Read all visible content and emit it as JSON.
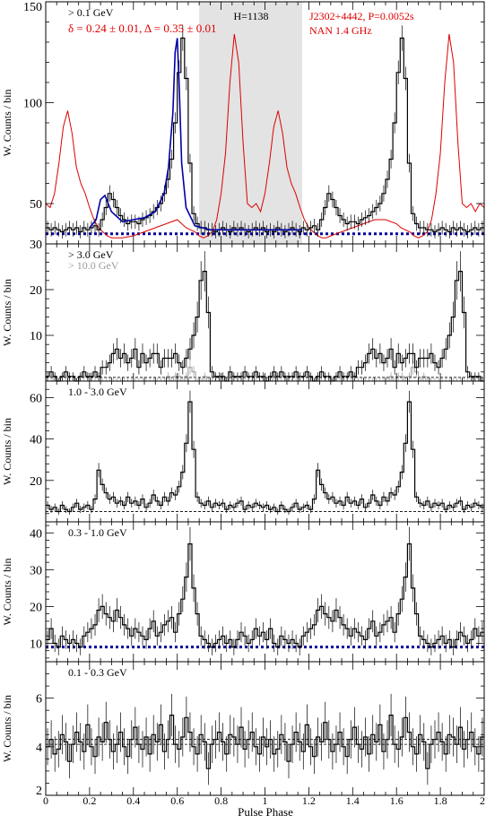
{
  "figure": {
    "x_axis_label": "Pulse Phase",
    "x_ticks": [
      "0",
      "0.2",
      "0.4",
      "0.6",
      "0.8",
      "1",
      "1.2",
      "1.4",
      "1.6",
      "1.8",
      "2"
    ],
    "colors": {
      "counts": "#000000",
      "radio": "#dd0000",
      "fit": "#0000aa",
      "background": "#000099",
      "offpulse": "#e3e3e3",
      "highE": "#9a9a9a"
    }
  },
  "chart_data": [
    {
      "type": "line",
      "panel": "p1",
      "ylabel": "W. Counts / bin",
      "ylim": [
        30,
        150
      ],
      "yticks": [
        50,
        100,
        150
      ],
      "bottom_tick_label": "30",
      "energy_label": "> 0.1 GeV",
      "fit_label": "δ = 0.24 ± 0.01, Δ = 0.35 ± 0.01",
      "h_label": "H=1138",
      "source_label": "J2302+4442, P=0.0052s",
      "radio_label": "NAN 1.4 GHz",
      "offpulse_phase": [
        0.7,
        1.17
      ],
      "background_level": 35,
      "series": [
        {
          "name": "> 0.1 GeV",
          "values": [
            38,
            37,
            38,
            37,
            36,
            37,
            38,
            37,
            38,
            36,
            38,
            37,
            38,
            39,
            37,
            42,
            48,
            55,
            52,
            48,
            44,
            42,
            40,
            41,
            41,
            40,
            42,
            43,
            44,
            46,
            48,
            50,
            55,
            62,
            72,
            90,
            115,
            132,
            112,
            70,
            45,
            40,
            38,
            38,
            37,
            37,
            36,
            37,
            38,
            37,
            36,
            38,
            37,
            38,
            37,
            36,
            37,
            38,
            37,
            38,
            36,
            37,
            36,
            38,
            37,
            36,
            37,
            38,
            37,
            36,
            38,
            37,
            38,
            39,
            37,
            42,
            48,
            55,
            52,
            48,
            44,
            42,
            40,
            41,
            41,
            40,
            42,
            43,
            44,
            46,
            48,
            50,
            55,
            62,
            72,
            90,
            115,
            132,
            112,
            70,
            45,
            40,
            38,
            38,
            37,
            37,
            36,
            37,
            38,
            37,
            36,
            38,
            37,
            38,
            37,
            36,
            37,
            38,
            37,
            38
          ]
        }
      ],
      "radio_profile": {
        "name": "NAN 1.4 GHz",
        "x": [
          0,
          0.02,
          0.04,
          0.06,
          0.08,
          0.1,
          0.12,
          0.14,
          0.16,
          0.18,
          0.2,
          0.22,
          0.24,
          0.26,
          0.28,
          0.3,
          0.35,
          0.4,
          0.45,
          0.5,
          0.55,
          0.6,
          0.62,
          0.64,
          0.66,
          0.68,
          0.7,
          0.72,
          0.74,
          0.76,
          0.78,
          0.8,
          0.82,
          0.84,
          0.86,
          0.88,
          0.9,
          0.92,
          0.94,
          0.96,
          0.98,
          1,
          1.02,
          1.04,
          1.06,
          1.08,
          1.1,
          1.12,
          1.14,
          1.16,
          1.18,
          1.2,
          1.22,
          1.24,
          1.26,
          1.28,
          1.3,
          1.35,
          1.4,
          1.45,
          1.5,
          1.55,
          1.6,
          1.62,
          1.64,
          1.66,
          1.68,
          1.7,
          1.72,
          1.74,
          1.76,
          1.78,
          1.8,
          1.82,
          1.84,
          1.86,
          1.88,
          1.9,
          1.92,
          1.94,
          1.96,
          1.98,
          2
        ],
        "y": [
          50,
          48,
          55,
          70,
          88,
          96,
          85,
          68,
          60,
          55,
          48,
          42,
          38,
          36,
          34,
          33,
          33,
          34,
          36,
          38,
          40,
          42,
          40,
          38,
          37,
          36,
          34,
          33,
          34,
          36,
          42,
          55,
          75,
          110,
          134,
          120,
          80,
          50,
          48,
          50,
          46,
          55,
          70,
          88,
          96,
          85,
          68,
          60,
          55,
          48,
          42,
          38,
          36,
          34,
          33,
          33,
          34,
          36,
          38,
          40,
          42,
          42,
          40,
          38,
          37,
          36,
          34,
          33,
          34,
          36,
          42,
          55,
          75,
          110,
          134,
          120,
          80,
          50,
          48,
          50,
          46,
          50,
          48
        ]
      },
      "fit_curve": {
        "name": "fit",
        "x": [
          0.2,
          0.23,
          0.25,
          0.27,
          0.3,
          0.35,
          0.4,
          0.45,
          0.5,
          0.54,
          0.56,
          0.58,
          0.59,
          0.6,
          0.61,
          0.62,
          0.64,
          0.68,
          0.75,
          0.85,
          1.0,
          1.1,
          1.17
        ],
        "y": [
          38,
          42,
          52,
          54,
          46,
          41,
          42,
          43,
          46,
          55,
          68,
          95,
          125,
          132,
          105,
          70,
          48,
          39,
          37,
          37,
          37,
          37,
          37
        ]
      }
    },
    {
      "type": "line",
      "panel": "p2",
      "ylabel": "W. Counts / bin",
      "ylim": [
        0,
        30
      ],
      "yticks": [
        10,
        20
      ],
      "energy_label": "> 3.0 GeV",
      "energy_label_2": "> 10.0 GeV",
      "background_level": 0.8,
      "series": [
        {
          "name": "> 3.0 GeV",
          "values": [
            1,
            2,
            1,
            0,
            1,
            2,
            1,
            1,
            0,
            1,
            2,
            1,
            1,
            2,
            1,
            3,
            3,
            4,
            6,
            7,
            5,
            6,
            4,
            5,
            7,
            3,
            6,
            4,
            5,
            6,
            6,
            3,
            5,
            5,
            5,
            6,
            4,
            3,
            5,
            7,
            10,
            14,
            22,
            24,
            15,
            2,
            1,
            1,
            1,
            0,
            2,
            1,
            1,
            1,
            2,
            1,
            1,
            2,
            1,
            1,
            0,
            1,
            2,
            1,
            2,
            1,
            1,
            1,
            2,
            1,
            1,
            2,
            1,
            0,
            1,
            2,
            1,
            1,
            0,
            1,
            2,
            1,
            1,
            2,
            1,
            3,
            3,
            4,
            6,
            7,
            5,
            6,
            4,
            5,
            7,
            3,
            6,
            4,
            5,
            6,
            6,
            3,
            5,
            5,
            5,
            6,
            4,
            3,
            5,
            7,
            10,
            14,
            22,
            24,
            15,
            2,
            1,
            1,
            1,
            0
          ]
        },
        {
          "name": "> 10.0 GeV",
          "values": [
            0,
            0,
            1,
            0,
            0,
            0,
            0,
            0,
            0,
            0,
            0,
            0,
            0,
            0,
            0,
            0,
            0,
            0,
            0,
            0,
            0,
            0,
            0,
            0,
            0,
            0,
            0,
            0,
            0,
            0,
            0,
            0,
            0,
            1,
            0,
            1,
            1,
            0,
            1,
            3,
            2,
            0,
            0,
            1,
            0,
            0,
            0,
            0,
            0,
            0,
            0,
            0,
            0,
            0,
            0,
            0,
            0,
            0,
            0,
            0,
            0,
            0,
            1,
            0,
            0,
            0,
            0,
            0,
            0,
            0,
            0,
            0,
            0,
            0,
            0,
            0,
            0,
            0,
            0,
            0,
            0,
            0,
            0,
            0,
            0,
            0,
            0,
            0,
            0,
            0,
            0,
            0,
            0,
            0,
            1,
            0,
            1,
            1,
            0,
            1,
            3,
            2,
            0,
            1,
            0,
            0,
            0,
            0,
            0,
            0,
            0,
            0,
            0,
            0,
            0,
            0,
            0,
            0,
            0,
            0
          ]
        }
      ]
    },
    {
      "type": "line",
      "panel": "p3",
      "ylabel": "W. Counts / bin",
      "ylim": [
        0,
        68
      ],
      "yticks": [
        20,
        40,
        60
      ],
      "energy_label": "1.0 - 3.0 GeV",
      "background_level": 5,
      "series": [
        {
          "name": "1.0 - 3.0 GeV",
          "values": [
            8,
            6,
            7,
            5,
            8,
            6,
            5,
            7,
            9,
            6,
            7,
            8,
            6,
            11,
            25,
            18,
            14,
            11,
            12,
            9,
            10,
            8,
            12,
            9,
            10,
            8,
            11,
            7,
            9,
            13,
            10,
            8,
            12,
            10,
            14,
            13,
            17,
            24,
            38,
            58,
            35,
            12,
            9,
            8,
            10,
            7,
            9,
            8,
            9,
            6,
            8,
            7,
            9,
            10,
            6,
            8,
            7,
            9,
            8,
            7,
            8,
            6,
            7,
            5,
            8,
            6,
            5,
            7,
            9,
            6,
            7,
            8,
            6,
            11,
            25,
            18,
            14,
            11,
            12,
            9,
            10,
            8,
            12,
            9,
            10,
            8,
            11,
            7,
            9,
            13,
            10,
            8,
            12,
            10,
            14,
            13,
            17,
            24,
            38,
            58,
            35,
            12,
            9,
            8,
            10,
            7,
            9,
            8,
            9,
            6,
            8,
            7,
            9,
            10,
            6,
            8,
            7,
            9,
            8,
            7
          ]
        }
      ]
    },
    {
      "type": "line",
      "panel": "p4",
      "ylabel": "W. Counts / bin",
      "ylim": [
        5,
        43
      ],
      "yticks": [
        10,
        20,
        30,
        40
      ],
      "energy_label": "0.3 - 1.0 GeV",
      "background_level": 9,
      "series": [
        {
          "name": "0.3 - 1.0 GeV",
          "values": [
            11,
            14,
            10,
            9,
            12,
            11,
            10,
            11,
            10,
            9,
            12,
            13,
            14,
            15,
            19,
            20,
            18,
            17,
            16,
            19,
            17,
            15,
            14,
            12,
            14,
            13,
            12,
            11,
            14,
            16,
            12,
            13,
            15,
            16,
            17,
            13,
            18,
            22,
            28,
            37,
            25,
            18,
            12,
            11,
            10,
            9,
            10,
            11,
            12,
            10,
            11,
            9,
            11,
            13,
            12,
            10,
            11,
            14,
            12,
            13,
            11,
            14,
            10,
            9,
            12,
            11,
            10,
            11,
            10,
            9,
            12,
            13,
            14,
            15,
            19,
            20,
            18,
            17,
            16,
            19,
            17,
            15,
            14,
            12,
            14,
            13,
            12,
            11,
            14,
            16,
            12,
            13,
            15,
            16,
            17,
            13,
            18,
            22,
            28,
            37,
            25,
            18,
            12,
            11,
            10,
            9,
            10,
            11,
            12,
            10,
            11,
            9,
            11,
            13,
            12,
            10,
            11,
            14,
            12,
            13
          ]
        }
      ]
    },
    {
      "type": "line",
      "panel": "p5",
      "ylabel": "W. Counts / bin",
      "ylim": [
        2,
        7.5
      ],
      "yticks": [
        2,
        4,
        6
      ],
      "energy_label": "0.1 - 0.3 GeV",
      "background_levels": [
        4.1,
        4.3
      ],
      "series": [
        {
          "name": "0.1 - 0.3 GeV",
          "values": [
            4.0,
            4.3,
            3.7,
            3.9,
            4.5,
            4.2,
            3.4,
            4.1,
            4.6,
            4.2,
            3.8,
            4.9,
            4.0,
            3.6,
            4.4,
            4.2,
            5.0,
            4.3,
            3.8,
            4.1,
            4.6,
            4.0,
            3.6,
            4.3,
            4.8,
            4.1,
            3.9,
            4.4,
            3.7,
            4.5,
            4.2,
            4.9,
            3.8,
            4.3,
            5.3,
            4.1,
            3.9,
            4.4,
            5.2,
            4.6,
            4.0,
            3.7,
            4.5,
            4.2,
            3.1,
            4.1,
            4.3,
            4.6,
            4.2,
            3.7,
            4.5,
            4.4,
            4.1,
            4.8,
            3.9,
            4.3,
            4.6,
            4.0,
            3.7,
            4.4,
            4.0,
            4.3,
            3.7,
            3.9,
            4.5,
            4.2,
            3.4,
            4.1,
            4.6,
            4.2,
            3.8,
            4.9,
            4.0,
            3.6,
            4.4,
            4.2,
            5.0,
            4.3,
            3.8,
            4.1,
            4.6,
            4.0,
            3.6,
            4.3,
            4.8,
            4.1,
            3.9,
            4.4,
            3.7,
            4.5,
            4.2,
            4.9,
            3.8,
            4.3,
            5.3,
            4.1,
            3.9,
            4.4,
            5.2,
            4.6,
            4.0,
            3.7,
            4.5,
            4.2,
            3.1,
            4.1,
            4.3,
            4.6,
            4.2,
            3.7,
            4.5,
            4.4,
            4.1,
            4.8,
            3.9,
            4.3,
            4.6,
            4.0,
            3.7,
            4.4
          ]
        }
      ]
    }
  ]
}
